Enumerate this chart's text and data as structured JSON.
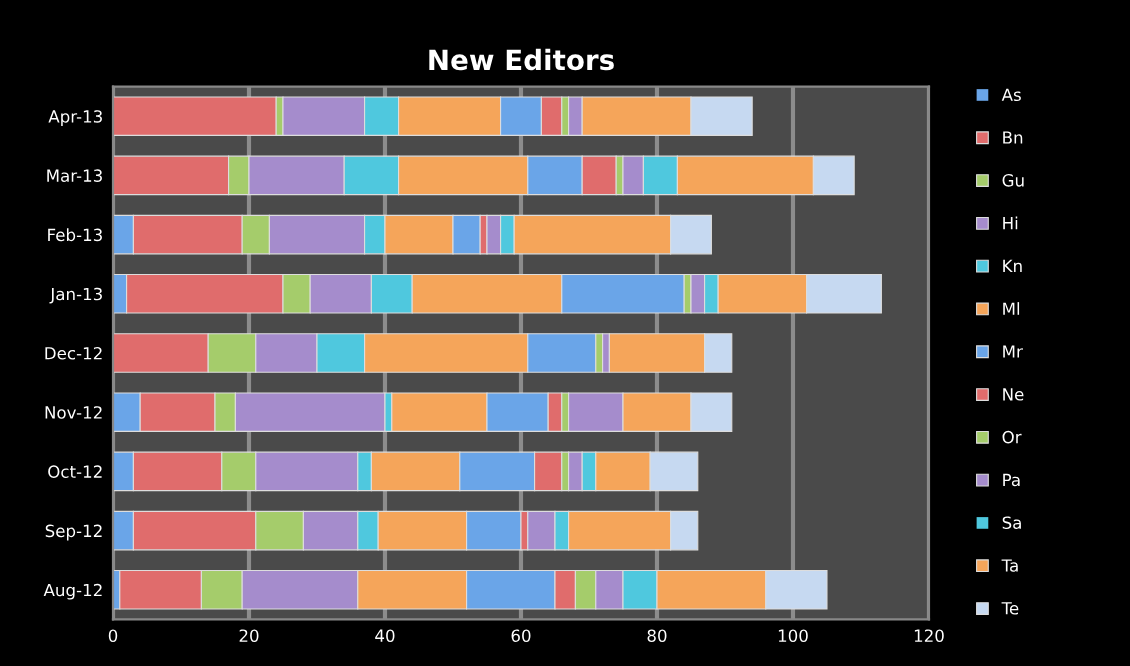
{
  "chart_data": {
    "type": "bar",
    "title": "New Editors",
    "orientation": "horizontal",
    "stacked": true,
    "categories": [
      "Apr-13",
      "Mar-13",
      "Feb-13",
      "Jan-13",
      "Dec-12",
      "Nov-12",
      "Oct-12",
      "Sep-12",
      "Aug-12"
    ],
    "series": [
      {
        "name": "As",
        "color": "#6aa5e8",
        "values": [
          0,
          0,
          3,
          2,
          0,
          4,
          3,
          3,
          1
        ]
      },
      {
        "name": "Bn",
        "color": "#e06c6c",
        "values": [
          24,
          17,
          16,
          23,
          14,
          11,
          13,
          18,
          12
        ]
      },
      {
        "name": "Gu",
        "color": "#a5cc6b",
        "values": [
          1,
          3,
          4,
          4,
          7,
          3,
          5,
          7,
          6
        ]
      },
      {
        "name": "Hi",
        "color": "#a58ccc",
        "values": [
          12,
          14,
          14,
          9,
          9,
          22,
          15,
          8,
          17
        ]
      },
      {
        "name": "Kn",
        "color": "#4fc8de",
        "values": [
          5,
          8,
          3,
          6,
          7,
          1,
          2,
          3,
          0
        ]
      },
      {
        "name": "Ml",
        "color": "#f5a55a",
        "values": [
          15,
          19,
          10,
          22,
          24,
          14,
          13,
          13,
          16
        ]
      },
      {
        "name": "Mr",
        "color": "#6aa5e8",
        "values": [
          6,
          8,
          4,
          18,
          10,
          9,
          11,
          8,
          13
        ]
      },
      {
        "name": "Ne",
        "color": "#e06c6c",
        "values": [
          3,
          5,
          1,
          0,
          0,
          2,
          4,
          1,
          3
        ]
      },
      {
        "name": "Or",
        "color": "#a5cc6b",
        "values": [
          1,
          1,
          0,
          1,
          1,
          1,
          1,
          0,
          3
        ]
      },
      {
        "name": "Pa",
        "color": "#a58ccc",
        "values": [
          2,
          3,
          2,
          2,
          1,
          8,
          2,
          4,
          4
        ]
      },
      {
        "name": "Sa",
        "color": "#4fc8de",
        "values": [
          0,
          5,
          2,
          2,
          0,
          0,
          2,
          2,
          5
        ]
      },
      {
        "name": "Ta",
        "color": "#f5a55a",
        "values": [
          16,
          20,
          23,
          13,
          14,
          10,
          8,
          15,
          16
        ]
      },
      {
        "name": "Te",
        "color": "#c6d9f1",
        "values": [
          9,
          6,
          6,
          11,
          4,
          6,
          7,
          4,
          9
        ]
      }
    ],
    "xlim": [
      0,
      120
    ],
    "xticks": [
      0,
      20,
      40,
      60,
      80,
      100,
      120
    ],
    "grid": "x",
    "legend": "right"
  }
}
